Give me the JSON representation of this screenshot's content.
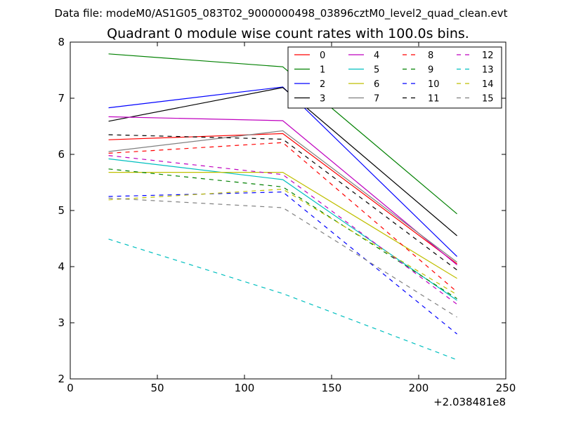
{
  "header": {
    "file_label": "Data file: modeM0/AS1G05_083T02_9000000498_03896cztM0_level2_quad_clean.evt"
  },
  "chart_data": {
    "type": "line",
    "title": "Quadrant 0 module wise count rates with 100.0s bins.",
    "xlabel": "",
    "ylabel": "",
    "x_offset_label": "+2.038481e8",
    "xlim": [
      0,
      250
    ],
    "ylim": [
      2,
      8
    ],
    "xticks": [
      0,
      50,
      100,
      150,
      200,
      250
    ],
    "yticks": [
      2,
      3,
      4,
      5,
      6,
      7,
      8
    ],
    "legend_position": "top-right",
    "legend_columns": 4,
    "x": [
      22,
      122,
      222
    ],
    "series": [
      {
        "name": "0",
        "color": "#ff0000",
        "dash": "solid",
        "values": [
          6.26,
          6.37,
          4.05
        ]
      },
      {
        "name": "1",
        "color": "#008000",
        "dash": "solid",
        "values": [
          7.79,
          7.56,
          4.94
        ]
      },
      {
        "name": "2",
        "color": "#0000ff",
        "dash": "solid",
        "values": [
          6.83,
          7.2,
          4.18
        ]
      },
      {
        "name": "3",
        "color": "#000000",
        "dash": "solid",
        "values": [
          6.59,
          7.19,
          4.55
        ]
      },
      {
        "name": "4",
        "color": "#bf00bf",
        "dash": "solid",
        "values": [
          6.67,
          6.6,
          4.03
        ]
      },
      {
        "name": "5",
        "color": "#00bfbf",
        "dash": "solid",
        "values": [
          5.92,
          5.55,
          3.4
        ]
      },
      {
        "name": "6",
        "color": "#bfbf00",
        "dash": "solid",
        "values": [
          5.68,
          5.68,
          3.79
        ]
      },
      {
        "name": "7",
        "color": "#808080",
        "dash": "solid",
        "values": [
          6.05,
          6.42,
          4.08
        ]
      },
      {
        "name": "8",
        "color": "#ff0000",
        "dash": "dashed",
        "values": [
          6.02,
          6.21,
          3.55
        ]
      },
      {
        "name": "9",
        "color": "#008000",
        "dash": "dashed",
        "values": [
          5.74,
          5.42,
          3.43
        ]
      },
      {
        "name": "10",
        "color": "#0000ff",
        "dash": "dashed",
        "values": [
          5.25,
          5.33,
          2.8
        ]
      },
      {
        "name": "11",
        "color": "#000000",
        "dash": "dashed",
        "values": [
          6.35,
          6.27,
          3.94
        ]
      },
      {
        "name": "12",
        "color": "#bf00bf",
        "dash": "dashed",
        "values": [
          5.98,
          5.64,
          3.33
        ]
      },
      {
        "name": "13",
        "color": "#00bfbf",
        "dash": "dashed",
        "values": [
          4.49,
          3.52,
          2.34
        ]
      },
      {
        "name": "14",
        "color": "#bfbf00",
        "dash": "dashed",
        "values": [
          5.19,
          5.38,
          3.5
        ]
      },
      {
        "name": "15",
        "color": "#808080",
        "dash": "dashed",
        "values": [
          5.22,
          5.05,
          3.1
        ]
      }
    ]
  }
}
